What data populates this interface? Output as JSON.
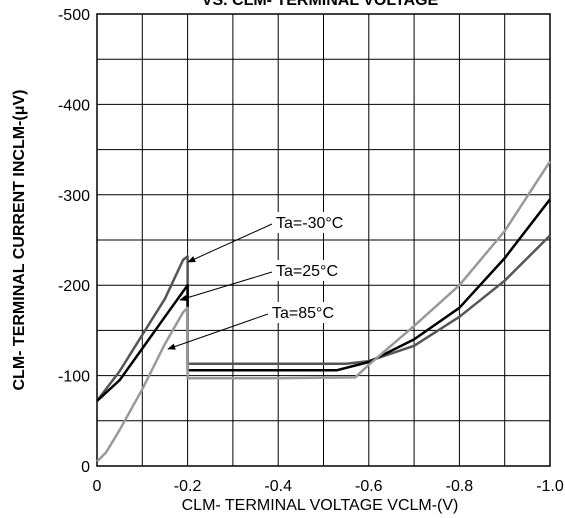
{
  "chart_data": {
    "type": "line",
    "title": "VS. CLM- TERMINAL VOLTAGE",
    "xlabel": "CLM- TERMINAL VOLTAGE VCLM-(V)",
    "ylabel": "CLM- TERMINAL CURRENT INCLM-(μV)",
    "xlim": [
      0,
      -1
    ],
    "ylim": [
      0,
      -500
    ],
    "xticks": [
      0,
      -0.2,
      -0.4,
      -0.6,
      -0.8,
      {
        "value": -1,
        "label": "-1.0"
      }
    ],
    "yticks": [
      0,
      -100,
      -200,
      -300,
      -400,
      -500
    ],
    "xminorticks": [
      -0.1,
      -0.3,
      -0.5,
      -0.7,
      -0.9
    ],
    "yminorticks": [
      -50,
      -150,
      -250,
      -350,
      -450
    ],
    "grid": true,
    "series": [
      {
        "name": "Ta=-30°C",
        "color": "#555555",
        "x": [
          0,
          -0.05,
          -0.1,
          -0.15,
          -0.19,
          -0.2,
          -0.2,
          -0.25,
          -0.4,
          -0.55,
          -0.6,
          -0.7,
          -0.8,
          -0.9,
          -1.0
        ],
        "values": [
          -72,
          -105,
          -145,
          -185,
          -228,
          -232,
          -113,
          -113,
          -113,
          -113,
          -116,
          -133,
          -165,
          -205,
          -255
        ]
      },
      {
        "name": "Ta=25°C",
        "color": "#000000",
        "x": [
          0,
          -0.05,
          -0.1,
          -0.15,
          -0.2,
          -0.2,
          -0.25,
          -0.4,
          -0.53,
          -0.6,
          -0.7,
          -0.8,
          -0.9,
          -1.0
        ],
        "values": [
          -72,
          -95,
          -130,
          -165,
          -200,
          -106,
          -106,
          -106,
          -106,
          -115,
          -140,
          -175,
          -230,
          -295
        ]
      },
      {
        "name": "Ta=85°C",
        "color": "#999999",
        "x": [
          0,
          -0.02,
          -0.05,
          -0.1,
          -0.15,
          -0.19,
          -0.2,
          -0.2,
          -0.25,
          -0.4,
          -0.57,
          -0.6,
          -0.7,
          -0.8,
          -0.9,
          -1.0
        ],
        "values": [
          -5,
          -15,
          -40,
          -85,
          -135,
          -170,
          -175,
          -97,
          -97,
          -97,
          -98,
          -112,
          -155,
          -200,
          -260,
          -337
        ]
      }
    ]
  }
}
